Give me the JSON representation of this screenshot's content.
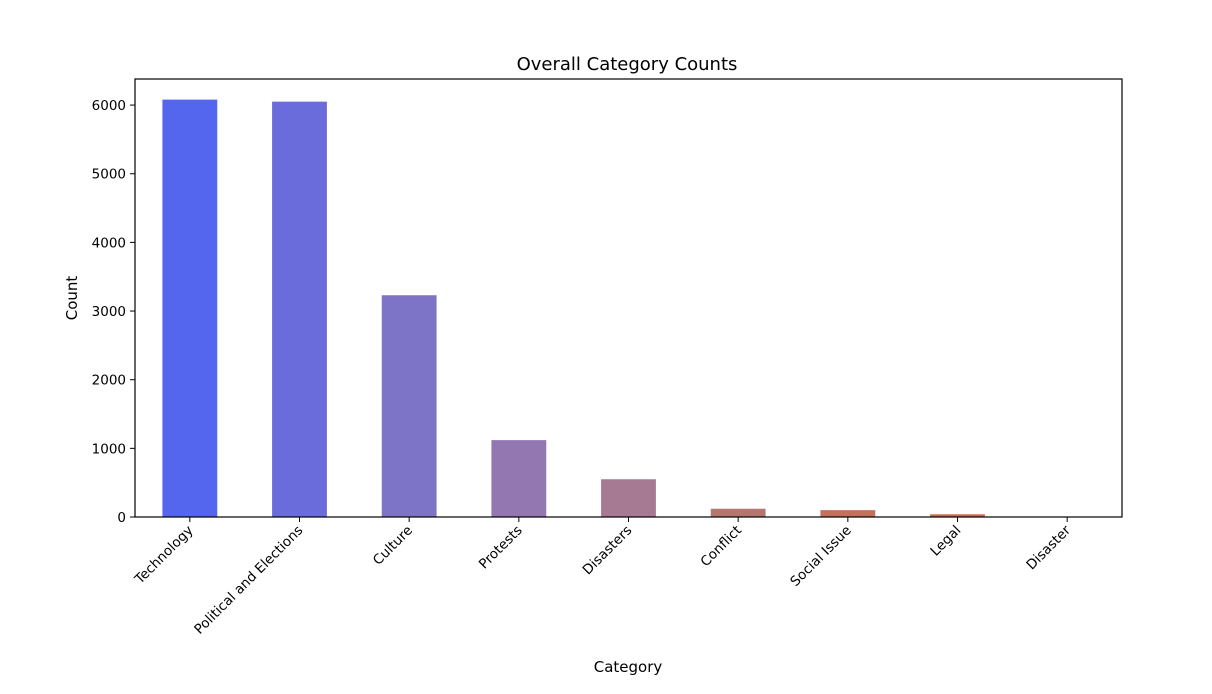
{
  "chart_data": {
    "type": "bar",
    "title": "Overall Category Counts",
    "xlabel": "Category",
    "ylabel": "Count",
    "categories": [
      "Technology",
      "Political and Elections",
      "Culture",
      "Protests",
      "Disasters",
      "Conflict",
      "Social Issue",
      "Legal",
      "Disaster"
    ],
    "values": [
      6080,
      6050,
      3230,
      1120,
      550,
      120,
      100,
      40,
      5
    ],
    "ylim": [
      0,
      6380
    ],
    "yticks": [
      0,
      1000,
      2000,
      3000,
      4000,
      5000,
      6000
    ],
    "colors": [
      "#5566ee",
      "#6a6cdb",
      "#7d74c7",
      "#9277b0",
      "#a77a93",
      "#b3776e",
      "#c4715c",
      "#d06a50",
      "#dc6346"
    ],
    "grid": false,
    "legend": "none"
  }
}
